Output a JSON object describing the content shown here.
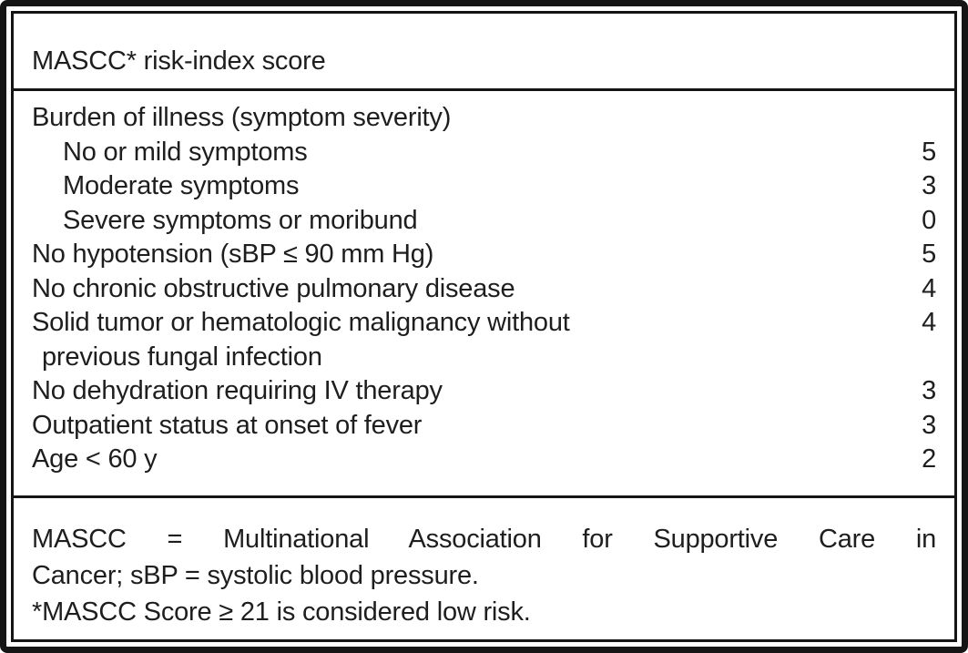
{
  "table": {
    "title": "MASCC* risk-index score",
    "rows": [
      {
        "label": "Burden of illness (symptom severity)",
        "score": ""
      },
      {
        "label": "No or mild symptoms",
        "score": "5"
      },
      {
        "label": "Moderate symptoms",
        "score": "3"
      },
      {
        "label": "Severe symptoms or moribund",
        "score": "0"
      },
      {
        "label": "No hypotension (sBP ≤ 90 mm Hg)",
        "score": "5"
      },
      {
        "label": "No chronic obstructive pulmonary disease",
        "score": "4"
      },
      {
        "label": "Solid tumor or hematologic malignancy without",
        "score": "4"
      },
      {
        "label": "previous fungal infection",
        "score": ""
      },
      {
        "label": "No dehydration requiring IV therapy",
        "score": "3"
      },
      {
        "label": "Outpatient status at onset of fever",
        "score": "3"
      },
      {
        "label": "Age < 60 y",
        "score": "2"
      }
    ],
    "footnote_lines": [
      "MASCC = Multinational Association for Supportive Care in",
      "Cancer; sBP = systolic blood pressure.",
      "*MASCC Score ≥ 21 is considered low risk."
    ],
    "colors": {
      "border": "#151515",
      "text": "#1e1e1e",
      "background": "#ffffff"
    }
  }
}
